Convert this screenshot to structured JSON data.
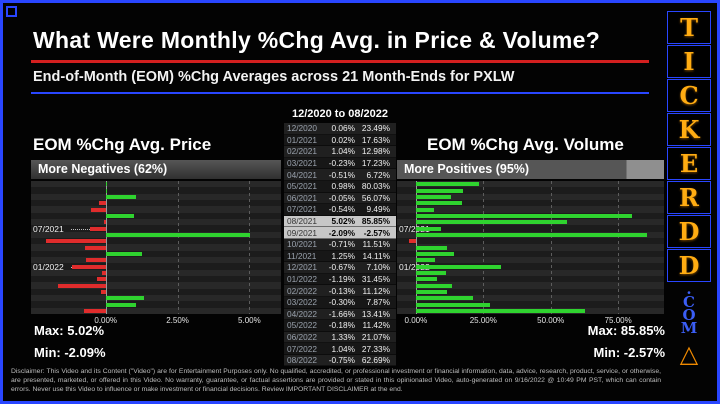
{
  "header": {
    "title": "What Were Monthly %Chg Avg. in Price & Volume?",
    "subtitle": "End-of-Month (EOM) %Chg Averages across 21 Month-Ends for PXLW"
  },
  "table": {
    "title": "12/2020 to 08/2022",
    "columns": [
      "month",
      "price_pct_chg",
      "volume_pct_chg"
    ],
    "highlight_rows": [
      "08/2021",
      "09/2021"
    ]
  },
  "chart_data": [
    {
      "type": "bar",
      "orientation": "horizontal",
      "title": "EOM %Chg Avg. Price",
      "banner": "More Negatives (62%)",
      "categories": [
        "12/2020",
        "01/2021",
        "02/2021",
        "03/2021",
        "04/2021",
        "05/2021",
        "06/2021",
        "07/2021",
        "08/2021",
        "09/2021",
        "10/2021",
        "11/2021",
        "12/2021",
        "01/2022",
        "02/2022",
        "03/2022",
        "04/2022",
        "05/2022",
        "06/2022",
        "07/2022",
        "08/2022"
      ],
      "values": [
        0.06,
        0.02,
        1.04,
        -0.23,
        -0.51,
        0.98,
        -0.05,
        -0.54,
        5.02,
        -2.09,
        -0.71,
        1.25,
        -0.67,
        -1.19,
        -0.13,
        -0.3,
        -1.66,
        -0.18,
        1.33,
        1.04,
        -0.75
      ],
      "ticks": [
        0,
        2.5,
        5
      ],
      "xlim": [
        -2.6,
        6.1
      ],
      "row_labels": [
        "07/2021",
        "01/2022"
      ],
      "max_label": "Max: 5.02%",
      "min_label": "Min: -2.09%",
      "positive_color": "#2fd32f",
      "negative_color": "#e02c2c",
      "grid": true,
      "legend": "none"
    },
    {
      "type": "bar",
      "orientation": "horizontal",
      "title": "EOM %Chg Avg. Volume",
      "banner": "More Positives (95%)",
      "categories": [
        "12/2020",
        "01/2021",
        "02/2021",
        "03/2021",
        "04/2021",
        "05/2021",
        "06/2021",
        "07/2021",
        "08/2021",
        "09/2021",
        "10/2021",
        "11/2021",
        "12/2021",
        "01/2022",
        "02/2022",
        "03/2022",
        "04/2022",
        "05/2022",
        "06/2022",
        "07/2022",
        "08/2022"
      ],
      "values": [
        23.49,
        17.63,
        12.98,
        17.23,
        6.72,
        80.03,
        56.07,
        9.49,
        85.85,
        -2.57,
        11.51,
        14.11,
        7.1,
        31.45,
        11.12,
        7.87,
        13.41,
        11.42,
        21.07,
        27.33,
        62.69
      ],
      "ticks": [
        0,
        25,
        50,
        75
      ],
      "xlim": [
        -7,
        92
      ],
      "row_labels": [
        "07/2021",
        "01/2022"
      ],
      "max_label": "Max: 85.85%",
      "min_label": "Min: -2.57%",
      "positive_color": "#2fd32f",
      "negative_color": "#e02c2c",
      "grid": true,
      "legend": "none"
    }
  ],
  "brand": {
    "letters": [
      "T",
      "I",
      "C",
      "K",
      "E",
      "R",
      "D",
      "D"
    ],
    "com_lines": [
      ".",
      "C",
      "O",
      "M"
    ],
    "triangle": "△"
  },
  "disclaimer": {
    "text": "Disclaimer: This Video and its Content (\"Video\") are for Entertainment Purposes only. No qualified, accredited, or professional investment or financial information, data, advice, research, product, service, or otherwise, are presented, marketed, or offered in this Video. No warranty, guarantee, or factual assertions are provided or stated in this opinionated Video, auto-generated on 9/16/2022 @ 10:49 PM PST, which can contain errors. Never use this Video to influence or make investment or financial decisions. Review IMPORTANT DISCLAIMER at the end."
  },
  "colors": {
    "frame_border": "#2946ff",
    "title_rule": "#d31f1f",
    "subtitle_rule": "#2946ff",
    "brand_letter": "#ffac12",
    "brand_com": "#3b5ef5",
    "brand_triangle": "#f08a00"
  }
}
